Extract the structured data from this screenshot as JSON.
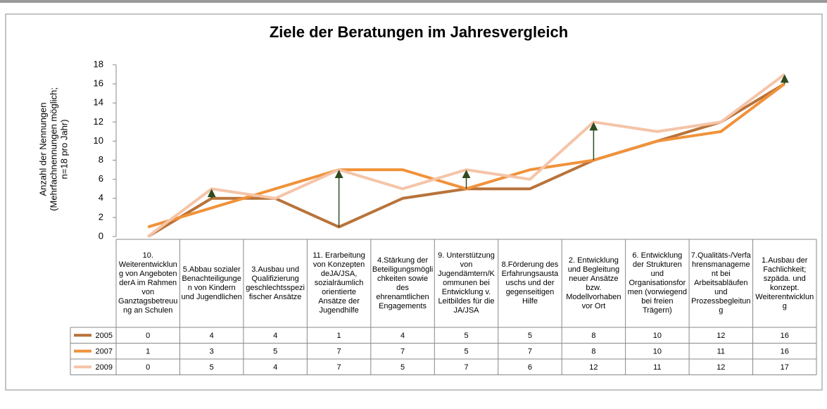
{
  "chart_data": {
    "type": "line",
    "title": "Ziele der Beratungen im Jahresvergleich",
    "y_label": [
      "Anzahl der Nennungen",
      "(Mehrfachnennungen möglich;",
      "n=18 pro Jahr)"
    ],
    "categories": [
      "10. Weiterentwicklung von Angeboten derA im Rahmen von Ganztagsbetreuung an Schulen",
      "5.Abbau sozialer Benachteiligungen von Kindern und Jugendlichen",
      "3.Ausbau und Qualifizierung geschlechtsspezifischer Ansätze",
      "11. Erarbeitung von Konzepten deJA/JSA, sozialräumlich orientierte Ansätze der Jugendhilfe",
      "4.Stärkung der Beteiligungsmöglichkeiten sowie des ehrenamtlichen Engagements",
      "9. Unterstützung von Jugendämtern/Kommunen bei Entwicklung v. Leitbildes für die JA/JSA",
      "8.Förderung des Erfahrungsaustauschs und der gegenseitigen Hilfe",
      "2. Entwicklung und Begleitung neuer Ansätze bzw. Modellvorhaben vor Ort",
      "6. Entwicklung der Strukturen und Organisationsformen (vorwiegend bei freien Trägern)",
      "7.Qualitäts-/Verfahrensmanagement bei Arbeitsabläufen und Prozessbegleitung",
      "1.Ausbau der Fachlichkeit; szpäda. und konzept. Weiterentwicklung"
    ],
    "series": [
      {
        "name": "2005",
        "color": "#b8733a",
        "values": [
          0,
          4,
          4,
          1,
          4,
          5,
          5,
          8,
          10,
          12,
          16
        ]
      },
      {
        "name": "2007",
        "color": "#f0923a",
        "values": [
          1,
          3,
          5,
          7,
          7,
          5,
          7,
          8,
          10,
          11,
          16
        ]
      },
      {
        "name": "2009",
        "color": "#f5c4a8",
        "values": [
          0,
          5,
          4,
          7,
          5,
          7,
          6,
          12,
          11,
          12,
          17
        ]
      }
    ],
    "ylim": [
      0,
      18
    ],
    "yticks": [
      0,
      2,
      4,
      6,
      8,
      10,
      12,
      14,
      16,
      18
    ],
    "grid": false
  }
}
